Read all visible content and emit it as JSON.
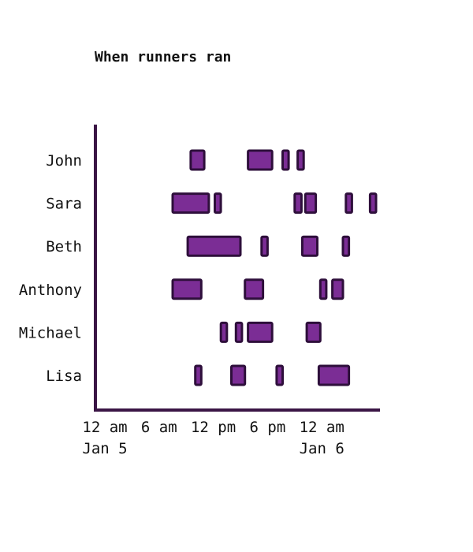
{
  "chart_data": {
    "type": "gantt",
    "title": "When runners ran",
    "x_range": [
      "2015-01-05T00:00",
      "2015-01-06T06:00"
    ],
    "tick_labels": [
      "12 am",
      "6 am",
      "12 pm",
      "6 pm",
      "12 am"
    ],
    "date_labels": [
      {
        "text": "Jan 5",
        "at": "2015-01-05T00:00"
      },
      {
        "text": "Jan 6",
        "at": "2015-01-06T00:00"
      }
    ],
    "colors": {
      "bar_fill": "#7b2d95",
      "bar_stroke": "#2e0f3b",
      "axis": "#3a1545"
    },
    "runners": [
      {
        "name": "John",
        "runs": [
          [
            "2015-01-05T09:30",
            "2015-01-05T11:00"
          ],
          [
            "2015-01-05T15:50",
            "2015-01-05T18:30"
          ],
          [
            "2015-01-05T19:40",
            "2015-01-05T20:20"
          ],
          [
            "2015-01-05T21:20",
            "2015-01-05T22:00"
          ]
        ]
      },
      {
        "name": "Sara",
        "runs": [
          [
            "2015-01-05T07:30",
            "2015-01-05T11:30"
          ],
          [
            "2015-01-05T12:10",
            "2015-01-05T12:50"
          ],
          [
            "2015-01-05T21:00",
            "2015-01-05T21:45"
          ],
          [
            "2015-01-05T22:10",
            "2015-01-05T23:20"
          ],
          [
            "2015-01-06T02:40",
            "2015-01-06T03:20"
          ],
          [
            "2015-01-06T05:20",
            "2015-01-06T06:00"
          ]
        ]
      },
      {
        "name": "Beth",
        "runs": [
          [
            "2015-01-05T09:10",
            "2015-01-05T15:00"
          ],
          [
            "2015-01-05T17:20",
            "2015-01-05T18:00"
          ],
          [
            "2015-01-05T21:50",
            "2015-01-05T23:30"
          ],
          [
            "2015-01-06T02:20",
            "2015-01-06T03:00"
          ]
        ]
      },
      {
        "name": "Anthony",
        "runs": [
          [
            "2015-01-05T07:30",
            "2015-01-05T10:40"
          ],
          [
            "2015-01-05T15:30",
            "2015-01-05T17:30"
          ],
          [
            "2015-01-05T23:50",
            "2015-01-06T00:30"
          ],
          [
            "2015-01-06T01:10",
            "2015-01-06T02:20"
          ]
        ]
      },
      {
        "name": "Michael",
        "runs": [
          [
            "2015-01-05T12:50",
            "2015-01-05T13:30"
          ],
          [
            "2015-01-05T14:30",
            "2015-01-05T15:10"
          ],
          [
            "2015-01-05T15:50",
            "2015-01-05T18:30"
          ],
          [
            "2015-01-05T22:20",
            "2015-01-05T23:50"
          ]
        ]
      },
      {
        "name": "Lisa",
        "runs": [
          [
            "2015-01-05T10:00",
            "2015-01-05T10:40"
          ],
          [
            "2015-01-05T14:00",
            "2015-01-05T15:30"
          ],
          [
            "2015-01-05T19:00",
            "2015-01-05T19:40"
          ],
          [
            "2015-01-05T23:40",
            "2015-01-06T03:00"
          ]
        ]
      }
    ]
  }
}
